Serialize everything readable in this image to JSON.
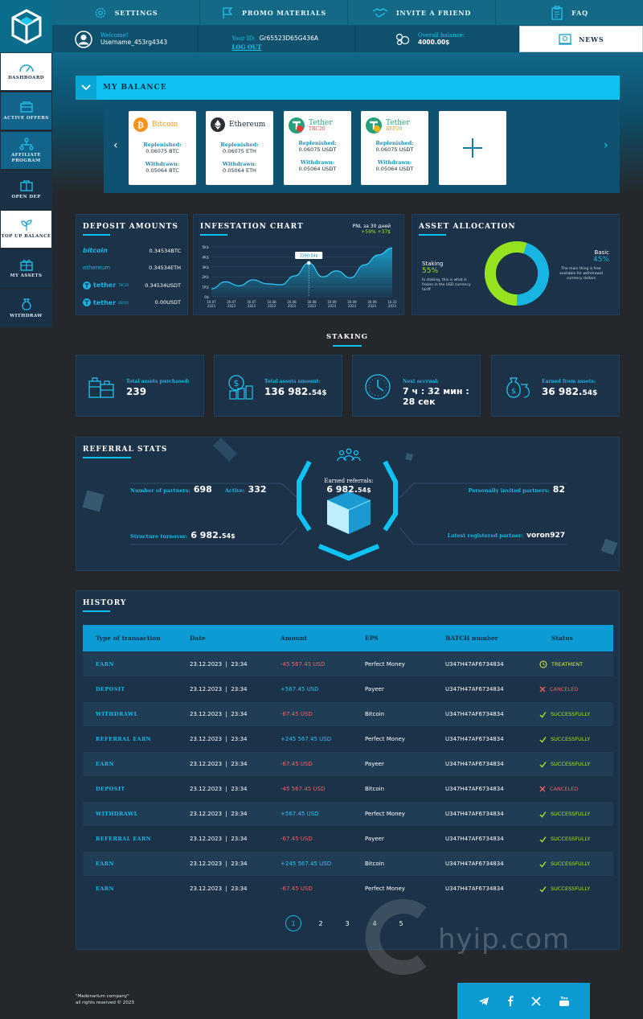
{
  "nav": {
    "settings": "SETTINGS",
    "promo": "PROMO MATERIALS",
    "invite": "INVITE A FRIEND",
    "faq": "FAQ",
    "news": "NEWS"
  },
  "user": {
    "welcome_label": "Welcome!",
    "username": "Username_453rg4343",
    "id_label": "Your ID:",
    "id_value": "Gr65523D65G436A",
    "logout": "LOG OUT",
    "balance_label": "Overall balance:",
    "balance_value": "4000.00$"
  },
  "sidebar": {
    "items": [
      {
        "label": "DASHBOARD"
      },
      {
        "label": "ACTIVE OFFERS"
      },
      {
        "label": "AFFILIATE PROGRAM"
      },
      {
        "label": "OPEN DEP"
      },
      {
        "label": "TOP UP BALANCE"
      },
      {
        "label": "MY ASSETS"
      },
      {
        "label": "WITHDRAW"
      }
    ]
  },
  "balance": {
    "title": "MY BALANCE",
    "replenished_label": "Replenished:",
    "withdrawn_label": "Withdrawn:",
    "cards": [
      {
        "name": "Bitcoin",
        "sub": "",
        "color": "#f7931a",
        "replenished": "0.06075 BTC",
        "withdrawn": "0.05064 BTC"
      },
      {
        "name": "Ethereum",
        "sub": "",
        "color": "#1b2b3a",
        "replenished": "0.06075 ETH",
        "withdrawn": "0.05064 ETH"
      },
      {
        "name": "Tether",
        "sub": "TRC20",
        "color": "#26a17b",
        "replenished": "0.06075 USDT",
        "withdrawn": "0.05064 USDT"
      },
      {
        "name": "Tether",
        "sub": "BEP20",
        "color": "#26a17b",
        "replenished": "0.06075 USDT",
        "withdrawn": "0.05064 USDT"
      }
    ]
  },
  "deposit": {
    "title": "DEPOSIT AMOUNTS",
    "rows": [
      {
        "name": "bitcoin",
        "value": "0.34534BTC"
      },
      {
        "name": "ethereum",
        "value": "0.34534ETH"
      },
      {
        "name": "tether",
        "sub": "TRC20",
        "value": "0.34534USDT"
      },
      {
        "name": "tether",
        "sub": "BEP20",
        "value": "0.00USDT"
      }
    ]
  },
  "chart_data": {
    "type": "area",
    "title": "INFESTATION CHART",
    "subtitle": "PNL за 30 дней",
    "change": "+59% +37$",
    "tooltip": "3390.54$",
    "y_ticks": [
      "5K$",
      "4K$",
      "3K$",
      "2K$",
      "1K$",
      "0$"
    ],
    "x_ticks": [
      {
        "d": "10.07",
        "y": "2023"
      },
      {
        "d": "20.07",
        "y": "2023"
      },
      {
        "d": "30.07",
        "y": "2023"
      },
      {
        "d": "10.08",
        "y": "2023"
      },
      {
        "d": "20.08",
        "y": "2023"
      },
      {
        "d": "30.08",
        "y": "2023"
      },
      {
        "d": "10.09",
        "y": "2023"
      },
      {
        "d": "20.09",
        "y": "2023"
      },
      {
        "d": "30.09",
        "y": "2023"
      },
      {
        "d": "10.10",
        "y": "2023"
      }
    ],
    "ylim": [
      0,
      5000
    ],
    "values": [
      800,
      1500,
      1100,
      1700,
      1300,
      1200,
      2100,
      3390,
      2000,
      2600,
      1900,
      3200,
      4200,
      4900
    ]
  },
  "allocation": {
    "title": "ASSET ALLOCATION",
    "staking_label": "Staking",
    "staking_pct": "55%",
    "staking_value": 55,
    "staking_note": "In staking, this is what is frozen in the USD currency tariff",
    "basic_label": "Basic",
    "basic_pct": "45%",
    "basic_note": "The main thing is free available for withdrawal currency dollars",
    "staking_color": "#96e21f",
    "basic_color": "#19b5e2"
  },
  "staking": {
    "title": "STAKING",
    "cards": [
      {
        "label": "Total assets purchased:",
        "value": "239",
        "small": ""
      },
      {
        "label": "Total assets amount:",
        "value": "136 982.",
        "small": "54$"
      },
      {
        "label": "Next accrual:",
        "value": "7 ч : 32 мин : 28 сек",
        "small": ""
      },
      {
        "label": "Earned from assets:",
        "value": "36 982.",
        "small": "54$"
      }
    ]
  },
  "referral": {
    "title": "REFERRAL STATS",
    "partners_label": "Number of partners:",
    "partners": "698",
    "active_label": "Active:",
    "active": "332",
    "turnover_label": "Structure turnover:",
    "turnover": "6 982.",
    "turnover_small": "54$",
    "earned_label": "Earned referrals:",
    "earned": "6 982.",
    "earned_small": "54$",
    "invited_label": "Personally invited partners:",
    "invited": "82",
    "latest_label": "Latest registered partner:",
    "latest": "voron927"
  },
  "history": {
    "title": "HISTORY",
    "columns": [
      "Type of transaction",
      "Date",
      "Amount",
      "EPS",
      "BATCH number",
      "Status"
    ],
    "rows": [
      {
        "type": "EARN",
        "date": "23.12.2023  |  23:34",
        "amount": "-45 567.45 USD",
        "pos": false,
        "eps": "Perfect Money",
        "batch": "U347H47AF6734834",
        "status": "TREATMENT",
        "kind": "tr"
      },
      {
        "type": "DEPOSIT",
        "date": "23.12.2023  |  23:34",
        "amount": "+567.45 USD",
        "pos": true,
        "eps": "Payeer",
        "batch": "U347H47AF6734834",
        "status": "CANCELED",
        "kind": "bad"
      },
      {
        "type": "WITHDRAWL",
        "date": "23.12.2023  |  23:34",
        "amount": "-67.45 USD",
        "pos": false,
        "eps": "Bitcoin",
        "batch": "U347H47AF6734834",
        "status": "SUCCESSFULLY",
        "kind": "ok"
      },
      {
        "type": "REFERRAL EARN",
        "date": "23.12.2023  |  23:34",
        "amount": "+245 567.45 USD",
        "pos": true,
        "eps": "Perfect Money",
        "batch": "U347H47AF6734834",
        "status": "SUCCESSFULLY",
        "kind": "ok"
      },
      {
        "type": "EARN",
        "date": "23.12.2023  |  23:34",
        "amount": "-67.45 USD",
        "pos": false,
        "eps": "Payeer",
        "batch": "U347H47AF6734834",
        "status": "SUCCESSFULLY",
        "kind": "ok"
      },
      {
        "type": "DEPOSIT",
        "date": "23.12.2023  |  23:34",
        "amount": "-45 567.45 USD",
        "pos": false,
        "eps": "Bitcoin",
        "batch": "U347H47AF6734834",
        "status": "CANCELED",
        "kind": "bad"
      },
      {
        "type": "WITHDRAWL",
        "date": "23.12.2023  |  23:34",
        "amount": "+567.45 USD",
        "pos": true,
        "eps": "Perfect Money",
        "batch": "U347H47AF6734834",
        "status": "SUCCESSFULLY",
        "kind": "ok"
      },
      {
        "type": "REFERRAL EARN",
        "date": "23.12.2023  |  23:34",
        "amount": "-67.45 USD",
        "pos": false,
        "eps": "Payeer",
        "batch": "U347H47AF6734834",
        "status": "SUCCESSFULLY",
        "kind": "ok"
      },
      {
        "type": "EARN",
        "date": "23.12.2023  |  23:34",
        "amount": "+245 567.45 USD",
        "pos": true,
        "eps": "Bitcoin",
        "batch": "U347H47AF6734834",
        "status": "SUCCESSFULLY",
        "kind": "ok"
      },
      {
        "type": "EARN",
        "date": "23.12.2023  |  23:34",
        "amount": "-67.45 USD",
        "pos": false,
        "eps": "Perfect Money",
        "batch": "U347H47AF6734834",
        "status": "SUCCESSFULLY",
        "kind": "ok"
      }
    ],
    "pages": [
      "1",
      "2",
      "3",
      "4",
      "5"
    ],
    "current_page": "1"
  },
  "watermark": "hyip.com",
  "footer": {
    "company": "\"Madenarium company\"",
    "rights": "all rights reserved © 2023"
  }
}
